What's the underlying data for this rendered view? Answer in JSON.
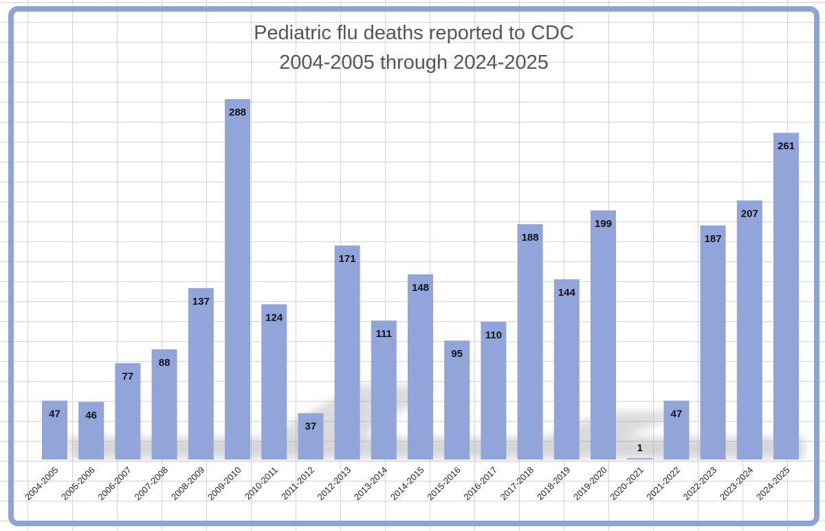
{
  "chart_data": {
    "type": "bar",
    "title": [
      "Pediatric flu deaths reported to CDC",
      "2004-2005 through 2024-2025"
    ],
    "xlabel": "",
    "ylabel": "",
    "ylim": [
      0,
      300
    ],
    "grid": true,
    "bar_color": "#91a5da",
    "frame_color": "#8ea3d8",
    "categories": [
      "2004-2005",
      "2005-2006",
      "2006-2007",
      "2007-2008",
      "2008-2009",
      "2009-2010",
      "2010-2011",
      "2011-2012",
      "2012-2013",
      "2013-2014",
      "2014-2015",
      "2015-2016",
      "2016-2017",
      "2017-2018",
      "2018-2019",
      "2019-2020",
      "2020-2021",
      "2021-2022",
      "2022-2023",
      "2023-2024",
      "2024-2025"
    ],
    "values": [
      47,
      46,
      77,
      88,
      137,
      288,
      124,
      37,
      171,
      111,
      148,
      95,
      110,
      188,
      144,
      199,
      1,
      47,
      187,
      207,
      261
    ]
  }
}
